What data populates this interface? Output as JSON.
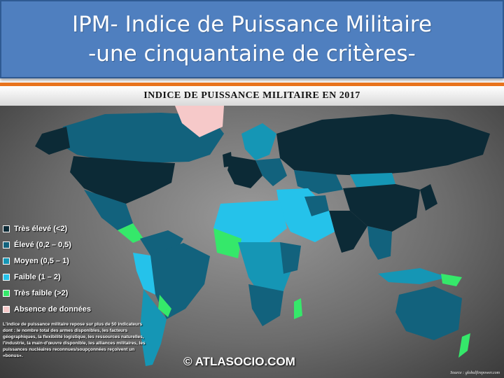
{
  "title": {
    "line1": "IPM- Indice de Puissance Militaire",
    "line2": "-une cinquantaine de critères-"
  },
  "map": {
    "title": "INDICE  DE  PUISSANCE  MILITAIRE   EN   2017",
    "colors": {
      "tres_eleve": "#0c2a36",
      "eleve": "#12627d",
      "moyen": "#1596b5",
      "faible": "#25c2ea",
      "tres_faible": "#35e86a",
      "absence": "#f6c9c9"
    },
    "legend": [
      {
        "label": "Très élevé (<2)",
        "color": "#0c2a36"
      },
      {
        "label": "Élevé (0,2 – 0,5)",
        "color": "#12627d"
      },
      {
        "label": "Moyen (0,5 – 1)",
        "color": "#1596b5"
      },
      {
        "label": "Faible (1 – 2)",
        "color": "#25c2ea"
      },
      {
        "label": "Très faible (>2)",
        "color": "#35e86a"
      },
      {
        "label": "Absence de données",
        "color": "#f6c9c9"
      }
    ],
    "note": "L'indice de puissance militaire repose sur plus de 50 indicateurs dont : le nombre total des armes disponibles, les facteurs géographiques, la flexibilité logistique, les ressources naturelles, l'industrie, la main-d'œuvre disponible, les alliances militaires, les puissances nucléaires reconnues/soupçonnées reçoivent un «bonus».",
    "copyright": "© ATLASOCIO.COM",
    "source": "Source : globalfirepower.com"
  }
}
